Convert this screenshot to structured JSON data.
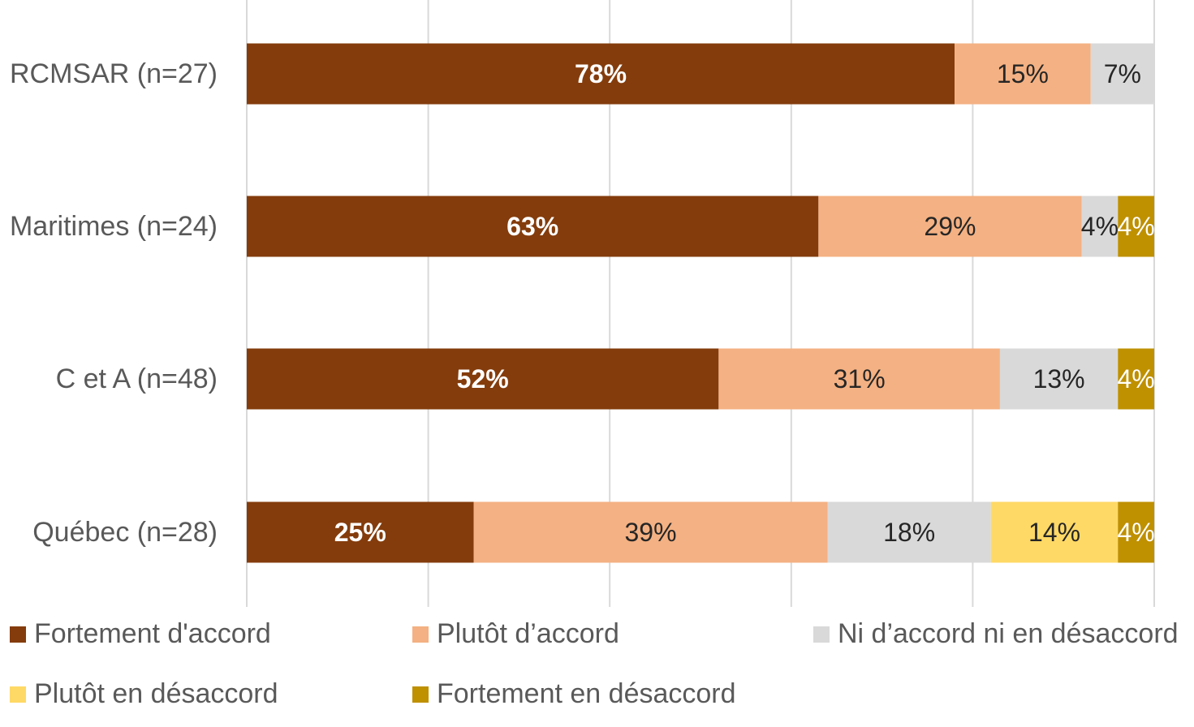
{
  "chart_data": {
    "type": "bar",
    "orientation": "horizontal",
    "stacked": true,
    "categories": [
      "RCMSAR (n=27)",
      "Maritimes (n=24)",
      "C et A (n=48)",
      "Québec (n=28)"
    ],
    "series": [
      {
        "name": "Fortement d'accord",
        "color": "#843C0C",
        "values": [
          78,
          63,
          52,
          25
        ],
        "labels": [
          "78%",
          "63%",
          "52%",
          "25%"
        ],
        "label_color": "#ffffff",
        "label_bold": true
      },
      {
        "name": "Plutôt d’accord",
        "color": "#F4B183",
        "values": [
          15,
          29,
          31,
          39
        ],
        "labels": [
          "15%",
          "29%",
          "31%",
          "39%"
        ],
        "label_color": "#262626",
        "label_bold": false
      },
      {
        "name": "Ni d’accord ni en désaccord",
        "color": "#D9D9D9",
        "values": [
          7,
          4,
          13,
          18
        ],
        "labels": [
          "7%",
          "4%",
          "13%",
          "18%"
        ],
        "label_color": "#262626",
        "label_bold": false
      },
      {
        "name": "Plutôt en désaccord",
        "color": "#FFD966",
        "values": [
          0,
          0,
          0,
          14
        ],
        "labels": [
          "",
          "",
          "",
          "14%"
        ],
        "label_color": "#262626",
        "label_bold": false
      },
      {
        "name": "Fortement en désaccord",
        "color": "#BF9000",
        "values": [
          0,
          4,
          4,
          4
        ],
        "labels": [
          "",
          "4%",
          "4%",
          "4%"
        ],
        "label_color": "#ffffff",
        "label_bold": false
      }
    ],
    "xlim": [
      0,
      100
    ],
    "grid": true,
    "legend_position": "bottom"
  }
}
